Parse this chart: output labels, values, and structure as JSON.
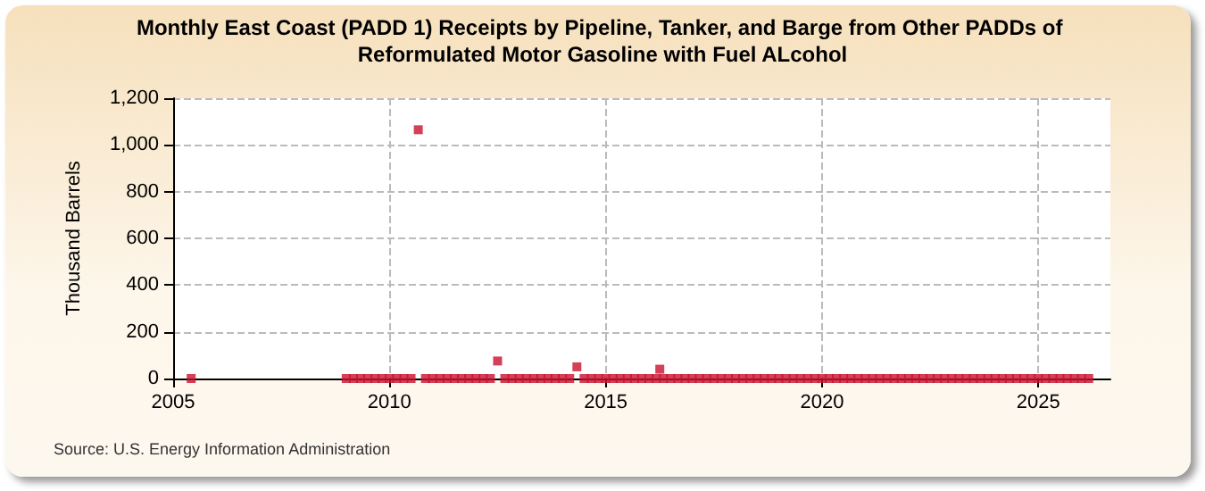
{
  "chart_data": {
    "type": "scatter",
    "title": "Monthly East Coast (PADD 1) Receipts by Pipeline, Tanker, and Barge from Other PADDs of Reformulated Motor Gasoline with Fuel ALcohol",
    "ylabel": "Thousand Barrels",
    "annotations": [
      "Source: U.S. Energy Information Administration"
    ],
    "x": [
      "2005-06",
      "2009-01",
      "2009-03",
      "2009-05",
      "2009-07",
      "2009-09",
      "2009-11",
      "2010-01",
      "2010-03",
      "2010-05",
      "2010-07",
      "2010-09",
      "2010-11",
      "2011-01",
      "2011-03",
      "2011-05",
      "2011-07",
      "2011-09",
      "2011-11",
      "2012-01",
      "2012-03",
      "2012-05",
      "2012-07",
      "2012-09",
      "2012-11",
      "2013-01",
      "2013-03",
      "2013-05",
      "2013-07",
      "2013-09",
      "2013-11",
      "2014-01",
      "2014-03",
      "2014-05",
      "2014-07",
      "2014-09",
      "2014-11",
      "2015-01",
      "2015-03",
      "2015-05",
      "2015-07",
      "2015-09",
      "2015-11",
      "2016-01",
      "2016-03",
      "2016-04",
      "2016-05",
      "2016-07",
      "2016-09",
      "2016-11",
      "2017-01",
      "2017-03",
      "2017-05",
      "2017-07",
      "2017-09",
      "2017-11",
      "2018-01",
      "2018-03",
      "2018-05",
      "2018-07",
      "2018-09",
      "2018-11",
      "2019-01",
      "2019-03",
      "2019-05",
      "2019-07",
      "2019-09",
      "2019-11",
      "2020-01",
      "2020-03",
      "2020-05",
      "2020-07",
      "2020-09",
      "2020-11",
      "2021-01",
      "2021-03",
      "2021-05",
      "2021-07",
      "2021-09",
      "2021-11",
      "2022-01",
      "2022-03",
      "2022-05",
      "2022-07",
      "2022-09",
      "2022-11",
      "2023-01",
      "2023-03",
      "2023-05",
      "2023-07",
      "2023-09",
      "2023-11",
      "2024-01",
      "2024-03",
      "2024-05",
      "2024-07",
      "2024-09",
      "2024-11",
      "2025-01",
      "2025-03",
      "2025-05",
      "2025-07",
      "2025-09",
      "2025-11",
      "2026-01",
      "2026-03"
    ],
    "series": [
      {
        "color": "#c8102e",
        "values": [
          0,
          0,
          0,
          0,
          0,
          0,
          0,
          0,
          0,
          0,
          0,
          1065,
          0,
          0,
          0,
          0,
          0,
          0,
          0,
          0,
          0,
          0,
          75,
          0,
          0,
          0,
          0,
          0,
          0,
          0,
          0,
          0,
          0,
          50,
          0,
          0,
          0,
          0,
          0,
          0,
          0,
          0,
          0,
          0,
          0,
          40,
          0,
          0,
          0,
          0,
          0,
          0,
          0,
          0,
          0,
          0,
          0,
          0,
          0,
          0,
          0,
          0,
          0,
          0,
          0,
          0,
          0,
          0,
          0,
          0,
          0,
          0,
          0,
          0,
          0,
          0,
          0,
          0,
          0,
          0,
          0,
          0,
          0,
          0,
          0,
          0,
          0,
          0,
          0,
          0,
          0,
          0,
          0,
          0,
          0,
          0,
          0,
          0,
          0,
          0,
          0,
          0,
          0,
          0,
          0,
          0
        ]
      }
    ],
    "marker": "square",
    "xlim": [
      "2005-01",
      "2026-09"
    ],
    "xticks": [
      {
        "value": "2005",
        "label": "2005"
      },
      {
        "value": "2010",
        "label": "2010"
      },
      {
        "value": "2015",
        "label": "2015"
      },
      {
        "value": "2020",
        "label": "2020"
      },
      {
        "value": "2025",
        "label": "2025"
      }
    ],
    "ylim": [
      0,
      1200
    ],
    "yticks": [
      0,
      200,
      400,
      600,
      800,
      {
        "value": 1000,
        "label": "1,000"
      },
      {
        "value": 1200,
        "label": "1,200"
      }
    ],
    "grid": true
  }
}
